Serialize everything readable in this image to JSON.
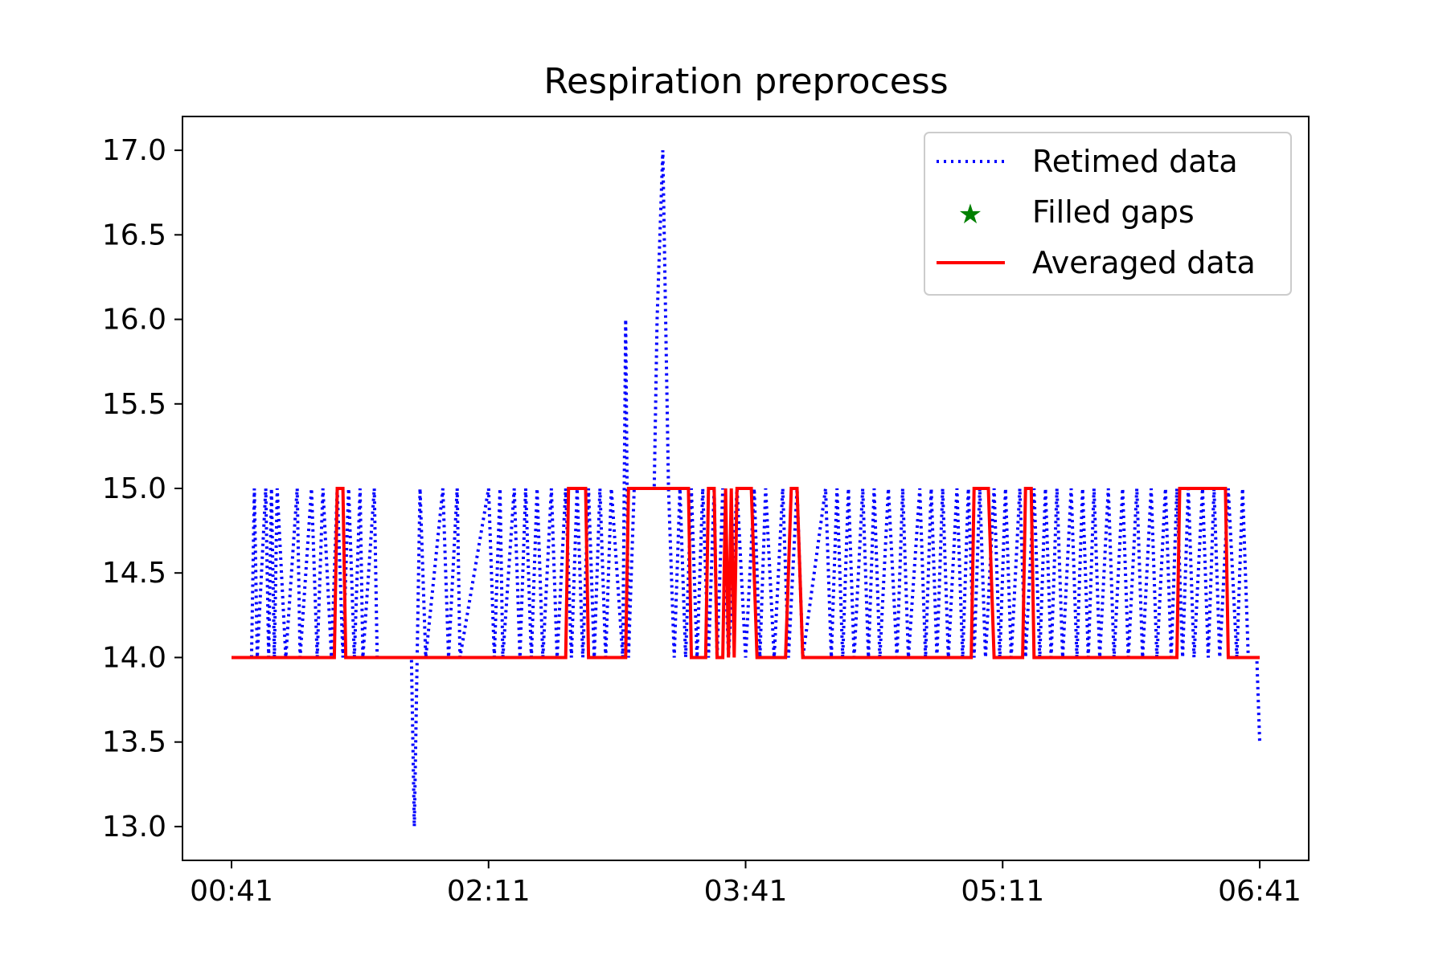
{
  "chart_data": {
    "type": "line",
    "title": "Respiration preprocess",
    "xlabel": "",
    "ylabel": "",
    "x_axis": {
      "unit": "HH:MM",
      "range": [
        "00:41",
        "06:41"
      ],
      "ticks": [
        "00:41",
        "02:11",
        "03:41",
        "05:11",
        "06:41"
      ]
    },
    "y_axis": {
      "range": [
        12.8,
        17.2
      ],
      "ticks": [
        "13.0",
        "13.5",
        "14.0",
        "14.5",
        "15.0",
        "15.5",
        "16.0",
        "16.5",
        "17.0"
      ]
    },
    "grid": false,
    "legend": {
      "position": "upper right",
      "entries": [
        {
          "label": "Retimed data",
          "color": "#0000ff",
          "style": "dotted line"
        },
        {
          "label": "Filled gaps",
          "color": "#008000",
          "style": "star marker"
        },
        {
          "label": "Averaged data",
          "color": "#ff0000",
          "style": "solid line"
        }
      ]
    },
    "series": [
      {
        "name": "Retimed data",
        "color": "#0000ff",
        "line_style": "dotted",
        "points": [
          [
            "00:48",
            14.0
          ],
          [
            "00:49",
            15.0
          ],
          [
            "00:50",
            14.0
          ],
          [
            "00:53",
            15.0
          ],
          [
            "00:54",
            14.0
          ],
          [
            "00:55",
            15.0
          ],
          [
            "00:56",
            14.0
          ],
          [
            "00:57",
            15.0
          ],
          [
            "01:00",
            14.0
          ],
          [
            "01:04",
            15.0
          ],
          [
            "01:05",
            14.0
          ],
          [
            "01:09",
            15.0
          ],
          [
            "01:11",
            14.0
          ],
          [
            "01:13",
            15.0
          ],
          [
            "01:16",
            14.0
          ],
          [
            "01:18",
            15.0
          ],
          [
            "01:20",
            14.0
          ],
          [
            "01:22",
            15.0
          ],
          [
            "01:24",
            14.0
          ],
          [
            "01:26",
            15.0
          ],
          [
            "01:27",
            14.0
          ],
          [
            "01:31",
            15.0
          ],
          [
            "01:32",
            14.0
          ],
          [
            "01:34",
            14.0
          ],
          [
            "01:44",
            14.0
          ],
          [
            "01:45",
            13.0
          ],
          [
            "01:46",
            14.0
          ],
          [
            "01:47",
            15.0
          ],
          [
            "01:49",
            14.0
          ],
          [
            "01:55",
            15.0
          ],
          [
            "01:57",
            14.0
          ],
          [
            "02:00",
            15.0
          ],
          [
            "02:01",
            14.0
          ],
          [
            "02:11",
            15.0
          ],
          [
            "02:13",
            14.0
          ],
          [
            "02:15",
            15.0
          ],
          [
            "02:16",
            14.0
          ],
          [
            "02:20",
            15.0
          ],
          [
            "02:22",
            14.0
          ],
          [
            "02:24",
            15.0
          ],
          [
            "02:26",
            14.0
          ],
          [
            "02:28",
            15.0
          ],
          [
            "02:30",
            14.0
          ],
          [
            "02:33",
            15.0
          ],
          [
            "02:35",
            14.0
          ],
          [
            "02:38",
            15.0
          ],
          [
            "02:40",
            14.0
          ],
          [
            "02:42",
            15.0
          ],
          [
            "02:44",
            14.0
          ],
          [
            "02:46",
            15.0
          ],
          [
            "02:48",
            14.0
          ],
          [
            "02:50",
            15.0
          ],
          [
            "02:52",
            14.0
          ],
          [
            "02:54",
            15.0
          ],
          [
            "02:58",
            14.0
          ],
          [
            "02:59",
            16.0
          ],
          [
            "03:00",
            14.0
          ],
          [
            "03:02",
            15.0
          ],
          [
            "03:09",
            15.0
          ],
          [
            "03:10",
            16.0
          ],
          [
            "03:12",
            17.0
          ],
          [
            "03:14",
            15.0
          ],
          [
            "03:16",
            14.0
          ],
          [
            "03:18",
            15.0
          ],
          [
            "03:20",
            14.0
          ],
          [
            "03:22",
            15.0
          ],
          [
            "03:24",
            14.0
          ],
          [
            "03:26",
            15.0
          ],
          [
            "03:28",
            14.0
          ],
          [
            "03:30",
            15.0
          ],
          [
            "03:31",
            14.0
          ],
          [
            "03:33",
            15.0
          ],
          [
            "03:35",
            14.0
          ],
          [
            "03:38",
            15.0
          ],
          [
            "03:41",
            14.0
          ],
          [
            "03:44",
            15.0
          ],
          [
            "03:46",
            14.0
          ],
          [
            "03:48",
            15.0
          ],
          [
            "03:51",
            14.0
          ],
          [
            "03:54",
            15.0
          ],
          [
            "03:56",
            14.0
          ],
          [
            "03:59",
            15.0
          ],
          [
            "04:01",
            14.0
          ],
          [
            "04:09",
            15.0
          ],
          [
            "04:11",
            14.0
          ],
          [
            "04:13",
            15.0
          ],
          [
            "04:15",
            14.0
          ],
          [
            "04:17",
            15.0
          ],
          [
            "04:19",
            14.0
          ],
          [
            "04:22",
            15.0
          ],
          [
            "04:24",
            14.0
          ],
          [
            "04:26",
            15.0
          ],
          [
            "04:28",
            14.0
          ],
          [
            "04:31",
            15.0
          ],
          [
            "04:34",
            14.0
          ],
          [
            "04:36",
            15.0
          ],
          [
            "04:38",
            14.0
          ],
          [
            "04:42",
            15.0
          ],
          [
            "04:44",
            14.0
          ],
          [
            "04:46",
            15.0
          ],
          [
            "04:48",
            14.0
          ],
          [
            "04:50",
            15.0
          ],
          [
            "04:52",
            14.0
          ],
          [
            "04:55",
            15.0
          ],
          [
            "04:57",
            14.0
          ],
          [
            "04:59",
            15.0
          ],
          [
            "05:01",
            14.0
          ],
          [
            "05:03",
            15.0
          ],
          [
            "05:05",
            14.0
          ],
          [
            "05:08",
            15.0
          ],
          [
            "05:10",
            14.0
          ],
          [
            "05:12",
            15.0
          ],
          [
            "05:14",
            14.0
          ],
          [
            "05:17",
            15.0
          ],
          [
            "05:19",
            14.0
          ],
          [
            "05:22",
            15.0
          ],
          [
            "05:24",
            14.0
          ],
          [
            "05:26",
            15.0
          ],
          [
            "05:28",
            14.0
          ],
          [
            "05:30",
            15.0
          ],
          [
            "05:32",
            14.0
          ],
          [
            "05:35",
            15.0
          ],
          [
            "05:37",
            14.0
          ],
          [
            "05:39",
            15.0
          ],
          [
            "05:41",
            14.0
          ],
          [
            "05:43",
            15.0
          ],
          [
            "05:45",
            14.0
          ],
          [
            "05:48",
            15.0
          ],
          [
            "05:50",
            14.0
          ],
          [
            "05:53",
            15.0
          ],
          [
            "05:55",
            14.0
          ],
          [
            "05:58",
            15.0
          ],
          [
            "06:00",
            14.0
          ],
          [
            "06:03",
            15.0
          ],
          [
            "06:05",
            14.0
          ],
          [
            "06:08",
            15.0
          ],
          [
            "06:10",
            14.0
          ],
          [
            "06:12",
            15.0
          ],
          [
            "06:14",
            14.0
          ],
          [
            "06:16",
            15.0
          ],
          [
            "06:18",
            14.0
          ],
          [
            "06:21",
            15.0
          ],
          [
            "06:23",
            14.0
          ],
          [
            "06:25",
            15.0
          ],
          [
            "06:27",
            14.0
          ],
          [
            "06:30",
            15.0
          ],
          [
            "06:33",
            14.0
          ],
          [
            "06:35",
            15.0
          ],
          [
            "06:37",
            14.0
          ],
          [
            "06:40",
            14.0
          ],
          [
            "06:41",
            13.5
          ]
        ]
      },
      {
        "name": "Filled gaps",
        "color": "#008000",
        "marker": "star",
        "points": []
      },
      {
        "name": "Averaged data",
        "color": "#ff0000",
        "line_style": "solid",
        "points": [
          [
            "00:41",
            14.0
          ],
          [
            "01:17",
            14.0
          ],
          [
            "01:18",
            15.0
          ],
          [
            "01:20",
            15.0
          ],
          [
            "01:21",
            14.0
          ],
          [
            "02:38",
            14.0
          ],
          [
            "02:39",
            15.0
          ],
          [
            "02:45",
            15.0
          ],
          [
            "02:46",
            14.0
          ],
          [
            "02:59",
            14.0
          ],
          [
            "03:00",
            15.0
          ],
          [
            "03:21",
            15.0
          ],
          [
            "03:22",
            14.0
          ],
          [
            "03:27",
            14.0
          ],
          [
            "03:28",
            15.0
          ],
          [
            "03:30",
            15.0
          ],
          [
            "03:31",
            14.0
          ],
          [
            "03:33",
            14.0
          ],
          [
            "03:34",
            15.0
          ],
          [
            "03:35",
            14.0
          ],
          [
            "03:36",
            15.0
          ],
          [
            "03:37",
            14.0
          ],
          [
            "03:38",
            15.0
          ],
          [
            "03:43",
            15.0
          ],
          [
            "03:45",
            14.0
          ],
          [
            "03:55",
            14.0
          ],
          [
            "03:57",
            15.0
          ],
          [
            "03:59",
            15.0
          ],
          [
            "04:01",
            14.0
          ],
          [
            "05:00",
            14.0
          ],
          [
            "05:01",
            15.0
          ],
          [
            "05:06",
            15.0
          ],
          [
            "05:08",
            14.0
          ],
          [
            "05:18",
            14.0
          ],
          [
            "05:19",
            15.0
          ],
          [
            "05:21",
            15.0
          ],
          [
            "05:22",
            14.0
          ],
          [
            "06:12",
            14.0
          ],
          [
            "06:13",
            15.0
          ],
          [
            "06:29",
            15.0
          ],
          [
            "06:30",
            14.0
          ],
          [
            "06:41",
            14.0
          ]
        ]
      }
    ]
  }
}
